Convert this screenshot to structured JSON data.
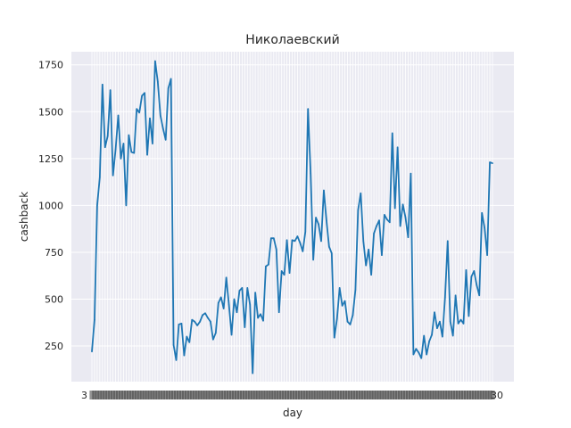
{
  "chart_data": {
    "type": "line",
    "title": "Николаевский",
    "xlabel": "day",
    "ylabel": "cashback",
    "x_tick_labels_note_visible_start": "3",
    "x_tick_label_last": "30",
    "yticks": [
      250,
      500,
      750,
      1000,
      1250,
      1500,
      1750
    ],
    "ylim": [
      60,
      1820
    ],
    "grid": true,
    "background": "#eaeaf2",
    "series": [
      {
        "color": "#1f77b4",
        "values": [
          220,
          390,
          1000,
          1150,
          1645,
          1310,
          1370,
          1615,
          1160,
          1300,
          1480,
          1250,
          1330,
          1000,
          1375,
          1285,
          1280,
          1515,
          1495,
          1585,
          1600,
          1270,
          1465,
          1330,
          1770,
          1660,
          1480,
          1410,
          1350,
          1625,
          1675,
          255,
          175,
          365,
          370,
          200,
          300,
          270,
          390,
          380,
          360,
          380,
          415,
          425,
          400,
          380,
          285,
          320,
          480,
          510,
          450,
          615,
          470,
          310,
          500,
          430,
          545,
          560,
          350,
          560,
          470,
          105,
          535,
          400,
          420,
          385,
          675,
          685,
          825,
          825,
          765,
          430,
          650,
          630,
          815,
          640,
          815,
          810,
          835,
          800,
          755,
          860,
          1515,
          1170,
          710,
          935,
          900,
          810,
          1080,
          920,
          780,
          745,
          295,
          395,
          560,
          465,
          490,
          380,
          365,
          415,
          550,
          975,
          1065,
          810,
          680,
          765,
          630,
          850,
          890,
          920,
          735,
          950,
          925,
          910,
          1385,
          985,
          1310,
          890,
          1005,
          935,
          830,
          1170,
          205,
          235,
          215,
          185,
          305,
          205,
          275,
          310,
          430,
          345,
          380,
          300,
          510,
          810,
          380,
          305,
          520,
          370,
          390,
          370,
          655,
          410,
          620,
          650,
          575,
          520,
          960,
          880,
          735,
          1230,
          1225
        ]
      }
    ]
  }
}
